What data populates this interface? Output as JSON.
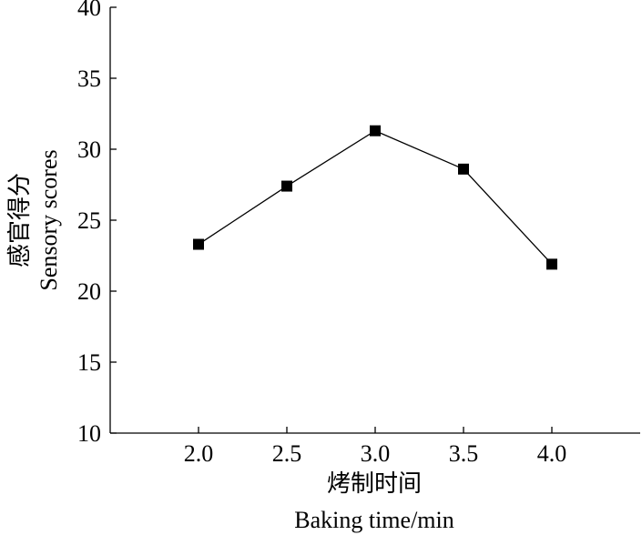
{
  "chart_data": {
    "type": "line",
    "x": [
      2.0,
      2.5,
      3.0,
      3.5,
      4.0
    ],
    "x_tick_labels": [
      "2.0",
      "2.5",
      "3.0",
      "3.5",
      "4.0"
    ],
    "series": [
      {
        "values": [
          23.3,
          27.4,
          31.3,
          28.6,
          21.9
        ],
        "marker": "square",
        "color": "#000000"
      }
    ],
    "y_ticks": [
      10,
      15,
      20,
      25,
      30,
      35,
      40
    ],
    "y_tick_labels": [
      "10",
      "15",
      "20",
      "25",
      "30",
      "35",
      "40"
    ],
    "xlabel_cn": "烤制时间",
    "xlabel": "Baking time/min",
    "ylabel_cn": "感官得分",
    "ylabel": "Sensory scores",
    "xlim": [
      1.5,
      4.5
    ],
    "ylim": [
      10,
      40
    ],
    "grid": false,
    "legend": "none"
  }
}
